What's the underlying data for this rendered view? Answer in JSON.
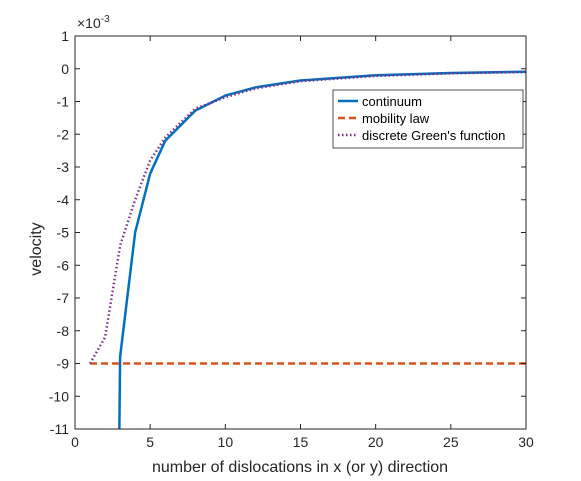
{
  "chart_data": {
    "type": "line",
    "xlabel": "number of dislocations in x (or y) direction",
    "ylabel": "velocity",
    "exponent_label": "×10",
    "exponent_power": "-3",
    "xlim": [
      0,
      30
    ],
    "ylim": [
      -11,
      1
    ],
    "xticks": [
      0,
      5,
      10,
      15,
      20,
      25,
      30
    ],
    "yticks": [
      1,
      0,
      -1,
      -2,
      -3,
      -4,
      -5,
      -6,
      -7,
      -8,
      -9,
      -10,
      -11
    ],
    "grid": false,
    "legend_position": "top-right",
    "series": [
      {
        "name": "continuum",
        "color": "#0072BD",
        "style": "solid",
        "x": [
          2.95,
          3,
          4,
          5,
          6,
          8,
          10,
          12,
          15,
          20,
          25,
          30
        ],
        "y": [
          -11,
          -8.8,
          -5.0,
          -3.2,
          -2.2,
          -1.28,
          -0.82,
          -0.57,
          -0.36,
          -0.2,
          -0.13,
          -0.09
        ]
      },
      {
        "name": "mobility law",
        "color": "#D95319",
        "style": "dashed",
        "x": [
          1,
          30
        ],
        "y": [
          -9,
          -9
        ]
      },
      {
        "name": "discrete Green's function",
        "color": "#7E2F8E",
        "style": "dotted",
        "x": [
          1,
          2,
          3,
          4,
          5,
          6,
          8,
          10,
          12,
          15,
          20,
          25,
          30
        ],
        "y": [
          -9.0,
          -8.2,
          -5.4,
          -4.0,
          -2.8,
          -2.1,
          -1.22,
          -0.87,
          -0.6,
          -0.38,
          -0.22,
          -0.14,
          -0.1
        ]
      }
    ]
  }
}
